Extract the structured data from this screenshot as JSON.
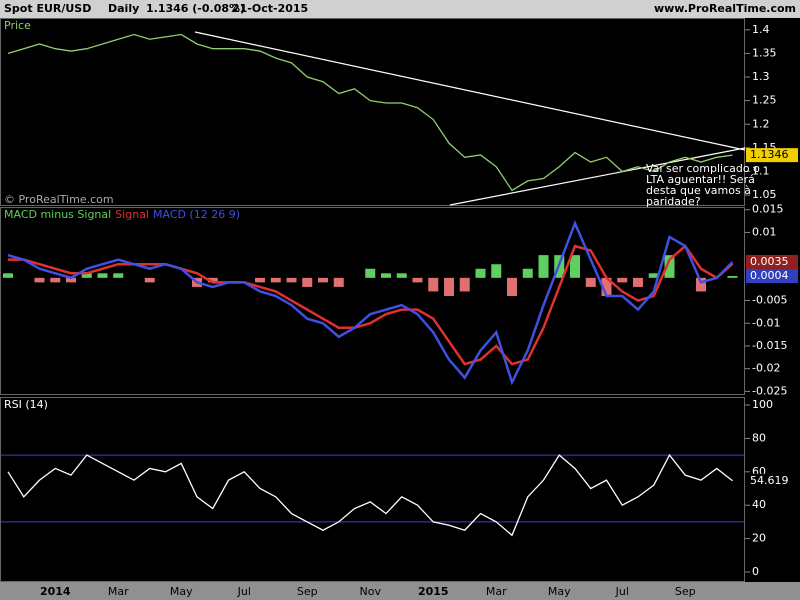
{
  "header": {
    "symbol": "Spot EUR/USD",
    "period": "Daily",
    "quote": "1.1346 (-0.08%)",
    "date": "21-Oct-2015",
    "site": "www.ProRealTime.com"
  },
  "chart_data": [
    {
      "type": "line",
      "watermark": "© ProRealTime.com",
      "series": [
        {
          "name": "Price",
          "color": "#8fcf6f",
          "values": [
            1.35,
            1.36,
            1.37,
            1.36,
            1.355,
            1.36,
            1.37,
            1.38,
            1.39,
            1.38,
            1.385,
            1.39,
            1.37,
            1.36,
            1.36,
            1.36,
            1.355,
            1.34,
            1.33,
            1.3,
            1.29,
            1.265,
            1.275,
            1.25,
            1.245,
            1.245,
            1.235,
            1.21,
            1.16,
            1.13,
            1.135,
            1.11,
            1.06,
            1.08,
            1.085,
            1.11,
            1.14,
            1.12,
            1.13,
            1.1,
            1.11,
            1.1,
            1.12,
            1.13,
            1.12,
            1.13,
            1.1346
          ]
        }
      ],
      "ylim": [
        1.029,
        1.425
      ],
      "yticks": [
        1.4,
        1.35,
        1.3,
        1.25,
        1.2,
        1.15,
        1.1,
        1.05
      ],
      "annotation": [
        "Vai ser complicado o",
        "LTA aguentar!! Será",
        "desta que vamos à",
        "paridade?"
      ]
    },
    {
      "type": "macd",
      "series": [
        {
          "name": "MACD minus Signal",
          "type": "bar",
          "color": "#5fcf5f",
          "negative_color": "#e07070",
          "values": [
            0.001,
            0,
            -0.001,
            -0.001,
            -0.001,
            0.001,
            0.001,
            0.001,
            0,
            -0.001,
            0,
            0,
            -0.002,
            -0.001,
            0,
            0,
            -0.001,
            -0.001,
            -0.001,
            -0.002,
            -0.001,
            -0.002,
            0,
            0.002,
            0.001,
            0.001,
            -0.001,
            -0.003,
            -0.004,
            -0.003,
            0.002,
            0.003,
            -0.004,
            0.002,
            0.005,
            0.005,
            0.005,
            -0.002,
            -0.004,
            -0.001,
            -0.002,
            0.001,
            0.005,
            0,
            -0.003,
            0,
            0.0004
          ]
        },
        {
          "name": "Signal",
          "type": "line",
          "color": "#e03030",
          "values": [
            0.004,
            0.004,
            0.003,
            0.002,
            0.001,
            0.001,
            0.002,
            0.003,
            0.003,
            0.003,
            0.003,
            0.002,
            0.001,
            -0.001,
            -0.001,
            -0.001,
            -0.002,
            -0.003,
            -0.005,
            -0.007,
            -0.009,
            -0.011,
            -0.011,
            -0.01,
            -0.008,
            -0.007,
            -0.007,
            -0.009,
            -0.014,
            -0.019,
            -0.018,
            -0.015,
            -0.019,
            -0.018,
            -0.011,
            -0.002,
            0.007,
            0.006,
            0,
            -0.003,
            -0.005,
            -0.004,
            0.004,
            0.007,
            0.002,
            0,
            0.0031
          ]
        },
        {
          "name": "MACD (12 26 9)",
          "type": "line",
          "color": "#4050e0",
          "values": [
            0.005,
            0.004,
            0.002,
            0.001,
            0,
            0.002,
            0.003,
            0.004,
            0.003,
            0.002,
            0.003,
            0.002,
            -0.001,
            -0.002,
            -0.001,
            -0.001,
            -0.003,
            -0.004,
            -0.006,
            -0.009,
            -0.01,
            -0.013,
            -0.011,
            -0.008,
            -0.007,
            -0.006,
            -0.008,
            -0.012,
            -0.018,
            -0.022,
            -0.016,
            -0.012,
            -0.023,
            -0.016,
            -0.006,
            0.003,
            0.012,
            0.004,
            -0.004,
            -0.004,
            -0.007,
            -0.003,
            0.009,
            0.007,
            -0.001,
            0,
            0.0035
          ]
        }
      ],
      "ylim": [
        -0.0258,
        0.0156
      ],
      "yticks": [
        0.015,
        0.01,
        -0.005,
        -0.01,
        -0.015,
        -0.02,
        -0.025
      ]
    },
    {
      "type": "line",
      "series": [
        {
          "name": "RSI (14)",
          "color": "#ffffff",
          "values": [
            60,
            45,
            55,
            62,
            58,
            70,
            65,
            60,
            55,
            62,
            60,
            65,
            45,
            38,
            55,
            60,
            50,
            45,
            35,
            30,
            25,
            30,
            38,
            42,
            35,
            45,
            40,
            30,
            28,
            25,
            35,
            30,
            22,
            45,
            55,
            70,
            62,
            50,
            55,
            40,
            45,
            52,
            70,
            58,
            55,
            62,
            54.619
          ]
        }
      ],
      "ylim": [
        -6,
        104.8
      ],
      "yticks": [
        0,
        20,
        40,
        60,
        80,
        100
      ],
      "levels": [
        30,
        70
      ],
      "level_color": "#4040d0",
      "categories": [
        null,
        null,
        null,
        "2014",
        null,
        null,
        null,
        "Mar",
        null,
        null,
        null,
        "May",
        null,
        null,
        null,
        "Jul",
        null,
        null,
        null,
        "Sep",
        null,
        null,
        null,
        "Nov",
        null,
        null,
        null,
        "2015",
        null,
        null,
        null,
        "Mar",
        null,
        null,
        null,
        "May",
        null,
        null,
        null,
        "Jul",
        null,
        null,
        null,
        "Sep",
        null,
        null,
        null
      ]
    }
  ]
}
